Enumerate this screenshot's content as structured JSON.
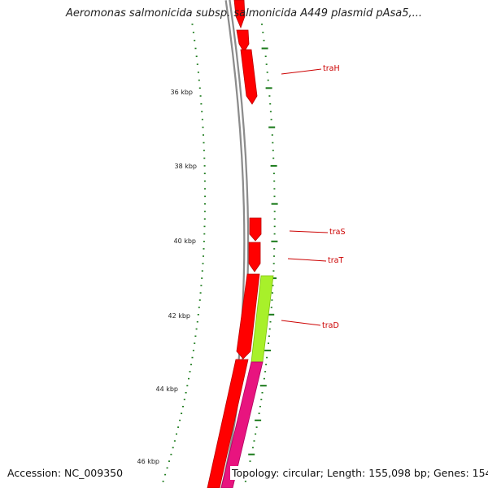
{
  "title": "Aeromonas salmonicida subsp. salmonicida A449 plasmid pAsa5,...",
  "footer": {
    "accession": "Accession: NC_009350",
    "topology": "Topology: circular; Length: 155,098 bp; Genes: 154"
  },
  "colors": {
    "backbone": "#8c8c8c",
    "tick": "#1a7a1a",
    "forward_gene": "#ff0000",
    "reverse_gene": "#e8147f",
    "highlight_gene": "#a8f02a",
    "label": "#cc0000"
  },
  "scale_labels": [
    "36 kbp",
    "38 kbp",
    "40 kbp",
    "42 kbp",
    "44 kbp",
    "46 kbp"
  ],
  "gene_labels": [
    "traH",
    "traS",
    "traT",
    "traD"
  ]
}
